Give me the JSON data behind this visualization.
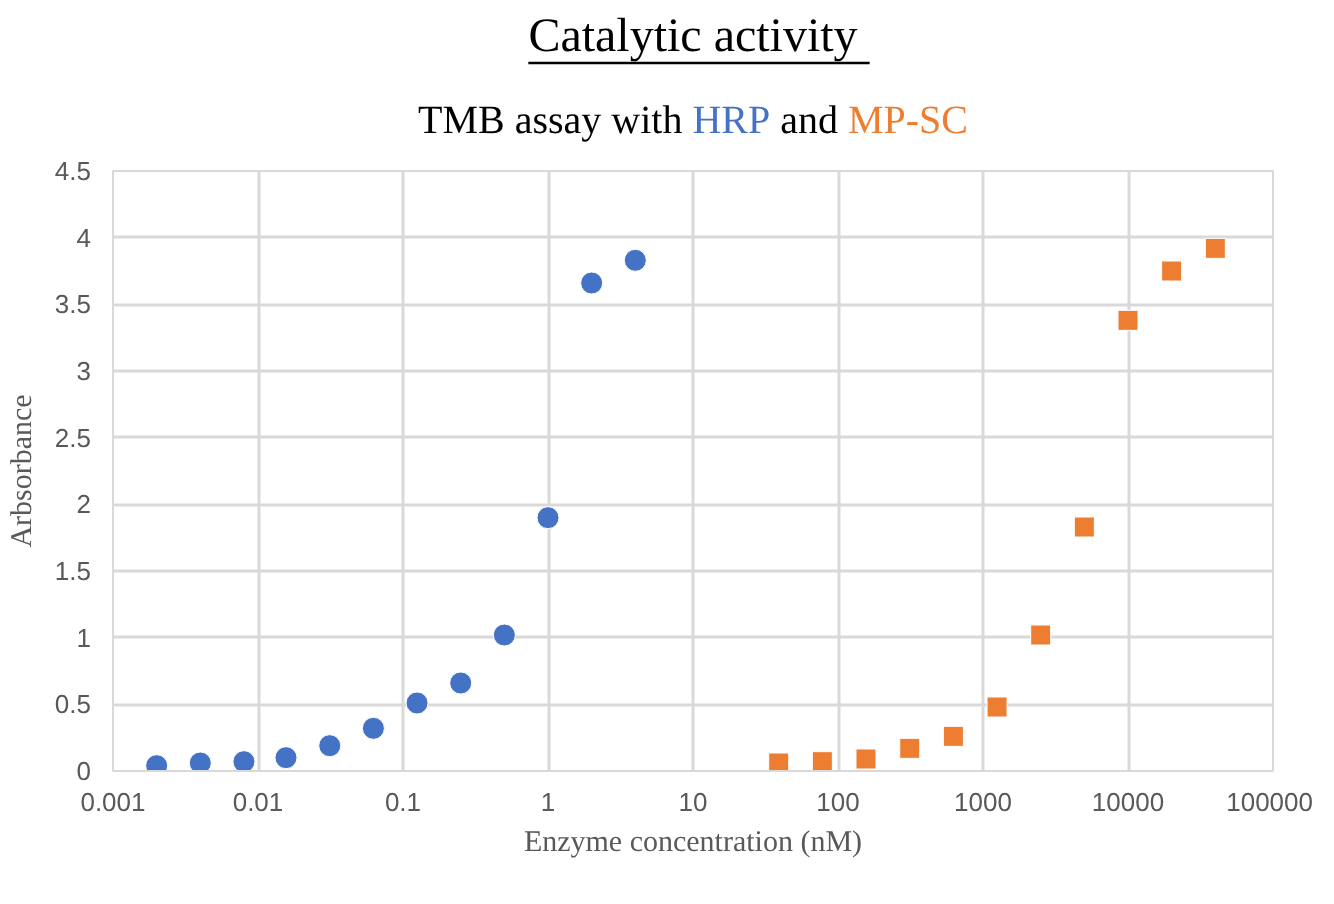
{
  "chart_data": {
    "type": "scatter",
    "title": "Catalytic activity",
    "subtitle": "TMB assay with",
    "annotations": [
      "and"
    ],
    "xlabel": "Enzyme concentration (nM)",
    "ylabel": "Arbsorbance",
    "log": "x",
    "grid": true,
    "xlim": [
      0.001,
      100000
    ],
    "xticks": [
      0.001,
      0.01,
      0.1,
      1,
      10,
      100,
      1000,
      10000,
      100000
    ],
    "ylim": [
      0,
      4.5
    ],
    "yticks": [
      0,
      0.5,
      1,
      1.5,
      2,
      2.5,
      3,
      3.5,
      4,
      4.5
    ],
    "series": [
      {
        "name": "HRP",
        "color": "#4472c4",
        "marker": "circle",
        "x": [
          0.002,
          0.004,
          0.008,
          0.0156,
          0.03125,
          0.0625,
          0.125,
          0.25,
          0.5,
          1,
          2,
          4
        ],
        "values": [
          0.04,
          0.06,
          0.07,
          0.1,
          0.19,
          0.32,
          0.51,
          0.66,
          1.02,
          1.9,
          3.66,
          3.83
        ]
      },
      {
        "name": "MP-SC",
        "color": "#ed7d31",
        "marker": "square",
        "x": [
          39,
          78,
          156,
          312.5,
          625,
          1250,
          2500,
          5000,
          10000,
          20000,
          40000
        ],
        "values": [
          0.06,
          0.07,
          0.09,
          0.17,
          0.26,
          0.48,
          1.02,
          1.83,
          3.38,
          3.75,
          3.92
        ]
      }
    ]
  }
}
